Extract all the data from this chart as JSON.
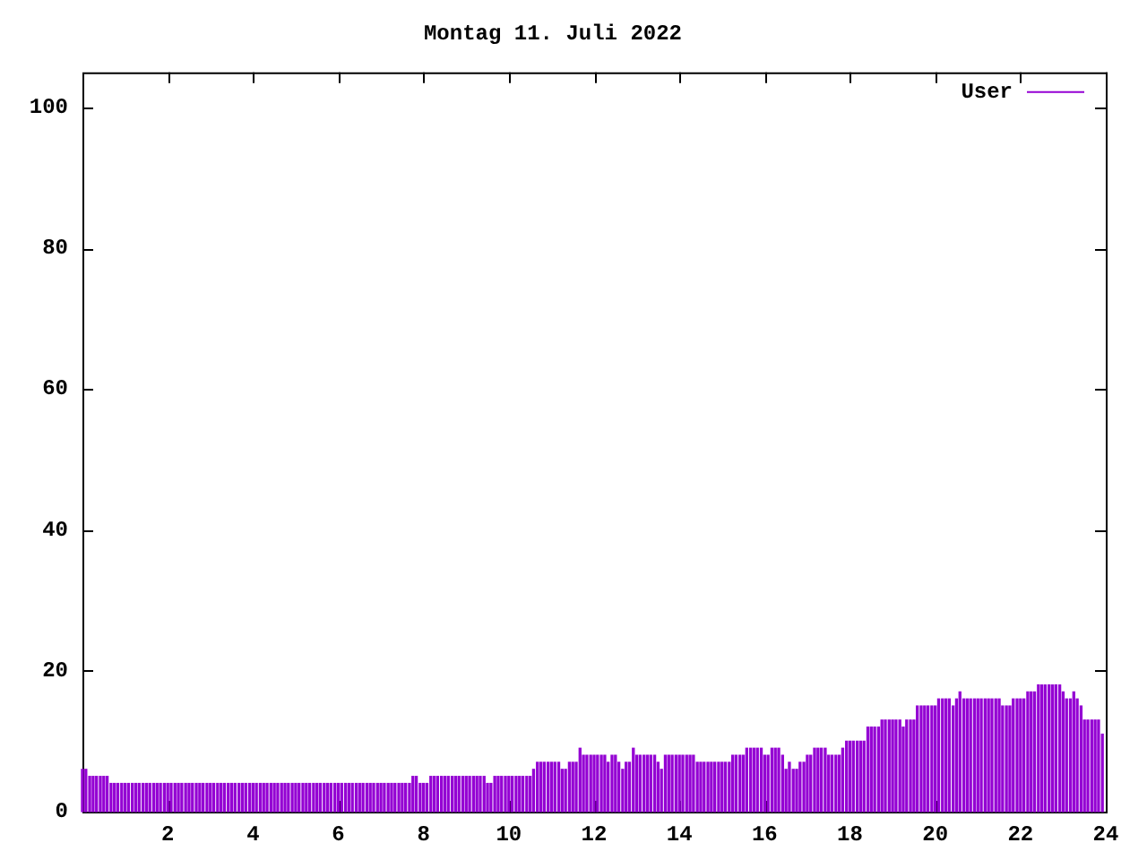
{
  "chart_data": {
    "type": "bar",
    "title": "Montag 11. Juli 2022",
    "legend": "top right",
    "grid": false,
    "xlim": [
      0,
      24
    ],
    "xticks": [
      2,
      4,
      6,
      8,
      10,
      12,
      14,
      16,
      18,
      20,
      22,
      24
    ],
    "ylim": [
      0,
      105
    ],
    "yticks": [
      0,
      20,
      40,
      60,
      80,
      100
    ],
    "x": [
      0,
      0.08,
      0.17,
      0.25,
      0.33,
      0.42,
      0.5,
      0.58,
      0.67,
      0.75,
      0.83,
      0.92,
      1,
      1.08,
      1.17,
      1.25,
      1.33,
      1.42,
      1.5,
      1.58,
      1.67,
      1.75,
      1.83,
      1.92,
      2,
      2.08,
      2.17,
      2.25,
      2.33,
      2.42,
      2.5,
      2.58,
      2.67,
      2.75,
      2.83,
      2.92,
      3,
      3.08,
      3.17,
      3.25,
      3.33,
      3.42,
      3.5,
      3.58,
      3.67,
      3.75,
      3.83,
      3.92,
      4,
      4.08,
      4.17,
      4.25,
      4.33,
      4.42,
      4.5,
      4.58,
      4.67,
      4.75,
      4.83,
      4.92,
      5,
      5.08,
      5.17,
      5.25,
      5.33,
      5.42,
      5.5,
      5.58,
      5.67,
      5.75,
      5.83,
      5.92,
      6,
      6.08,
      6.17,
      6.25,
      6.33,
      6.42,
      6.5,
      6.58,
      6.67,
      6.75,
      6.83,
      6.92,
      7,
      7.08,
      7.17,
      7.25,
      7.33,
      7.42,
      7.5,
      7.58,
      7.67,
      7.75,
      7.83,
      7.92,
      8,
      8.08,
      8.17,
      8.25,
      8.33,
      8.42,
      8.5,
      8.58,
      8.67,
      8.75,
      8.83,
      8.92,
      9,
      9.08,
      9.17,
      9.25,
      9.33,
      9.42,
      9.5,
      9.58,
      9.67,
      9.75,
      9.83,
      9.92,
      10,
      10.08,
      10.17,
      10.25,
      10.33,
      10.42,
      10.5,
      10.58,
      10.67,
      10.75,
      10.83,
      10.92,
      11,
      11.08,
      11.17,
      11.25,
      11.33,
      11.42,
      11.5,
      11.58,
      11.67,
      11.75,
      11.83,
      11.92,
      12,
      12.08,
      12.17,
      12.25,
      12.33,
      12.42,
      12.5,
      12.58,
      12.67,
      12.75,
      12.83,
      12.92,
      13,
      13.08,
      13.17,
      13.25,
      13.33,
      13.42,
      13.5,
      13.58,
      13.67,
      13.75,
      13.83,
      13.92,
      14,
      14.08,
      14.17,
      14.25,
      14.33,
      14.42,
      14.5,
      14.58,
      14.67,
      14.75,
      14.83,
      14.92,
      15,
      15.08,
      15.17,
      15.25,
      15.33,
      15.42,
      15.5,
      15.58,
      15.67,
      15.75,
      15.83,
      15.92,
      16,
      16.08,
      16.17,
      16.25,
      16.33,
      16.42,
      16.5,
      16.58,
      16.67,
      16.75,
      16.83,
      16.92,
      17,
      17.08,
      17.17,
      17.25,
      17.33,
      17.42,
      17.5,
      17.58,
      17.67,
      17.75,
      17.83,
      17.92,
      18,
      18.08,
      18.17,
      18.25,
      18.33,
      18.42,
      18.5,
      18.58,
      18.67,
      18.75,
      18.83,
      18.92,
      19,
      19.08,
      19.17,
      19.25,
      19.33,
      19.42,
      19.5,
      19.58,
      19.67,
      19.75,
      19.83,
      19.92,
      20,
      20.08,
      20.17,
      20.25,
      20.33,
      20.42,
      20.5,
      20.58,
      20.67,
      20.75,
      20.83,
      20.92,
      21,
      21.08,
      21.17,
      21.25,
      21.33,
      21.42,
      21.5,
      21.58,
      21.67,
      21.75,
      21.83,
      21.92,
      22,
      22.08,
      22.17,
      22.25,
      22.33,
      22.42,
      22.5,
      22.58,
      22.67,
      22.75,
      22.83,
      22.92,
      23,
      23.08,
      23.17,
      23.25,
      23.33,
      23.42,
      23.5,
      23.58,
      23.67,
      23.75,
      23.83,
      23.92
    ],
    "series": [
      {
        "name": "User",
        "color": "#9400d3",
        "values": [
          6,
          6,
          5,
          5,
          5,
          5,
          5,
          5,
          4,
          4,
          4,
          4,
          4,
          4,
          4,
          4,
          4,
          4,
          4,
          4,
          4,
          4,
          4,
          4,
          4,
          4,
          4,
          4,
          4,
          4,
          4,
          4,
          4,
          4,
          4,
          4,
          4,
          4,
          4,
          4,
          4,
          4,
          4,
          4,
          4,
          4,
          4,
          4,
          4,
          4,
          4,
          4,
          4,
          4,
          4,
          4,
          4,
          4,
          4,
          4,
          4,
          4,
          4,
          4,
          4,
          4,
          4,
          4,
          4,
          4,
          4,
          4,
          4,
          4,
          4,
          4,
          4,
          4,
          4,
          4,
          4,
          4,
          4,
          4,
          4,
          4,
          4,
          4,
          4,
          4,
          4,
          4,
          4,
          5,
          5,
          4,
          4,
          4,
          5,
          5,
          5,
          5,
          5,
          5,
          5,
          5,
          5,
          5,
          5,
          5,
          5,
          5,
          5,
          5,
          4,
          4,
          5,
          5,
          5,
          5,
          5,
          5,
          5,
          5,
          5,
          5,
          5,
          6,
          7,
          7,
          7,
          7,
          7,
          7,
          7,
          6,
          6,
          7,
          7,
          7,
          9,
          8,
          8,
          8,
          8,
          8,
          8,
          8,
          7,
          8,
          8,
          7,
          6,
          7,
          7,
          9,
          8,
          8,
          8,
          8,
          8,
          8,
          7,
          6,
          8,
          8,
          8,
          8,
          8,
          8,
          8,
          8,
          8,
          7,
          7,
          7,
          7,
          7,
          7,
          7,
          7,
          7,
          7,
          8,
          8,
          8,
          8,
          9,
          9,
          9,
          9,
          9,
          8,
          8,
          9,
          9,
          9,
          8,
          6,
          7,
          6,
          6,
          7,
          7,
          8,
          8,
          9,
          9,
          9,
          9,
          8,
          8,
          8,
          8,
          9,
          10,
          10,
          10,
          10,
          10,
          10,
          12,
          12,
          12,
          12,
          13,
          13,
          13,
          13,
          13,
          13,
          12,
          13,
          13,
          13,
          15,
          15,
          15,
          15,
          15,
          15,
          16,
          16,
          16,
          16,
          15,
          16,
          17,
          16,
          16,
          16,
          16,
          16,
          16,
          16,
          16,
          16,
          16,
          16,
          15,
          15,
          15,
          16,
          16,
          16,
          16,
          17,
          17,
          17,
          18,
          18,
          18,
          18,
          18,
          18,
          18,
          17,
          16,
          16,
          17,
          16,
          15,
          13,
          13,
          13,
          13,
          13,
          11
        ]
      }
    ]
  }
}
